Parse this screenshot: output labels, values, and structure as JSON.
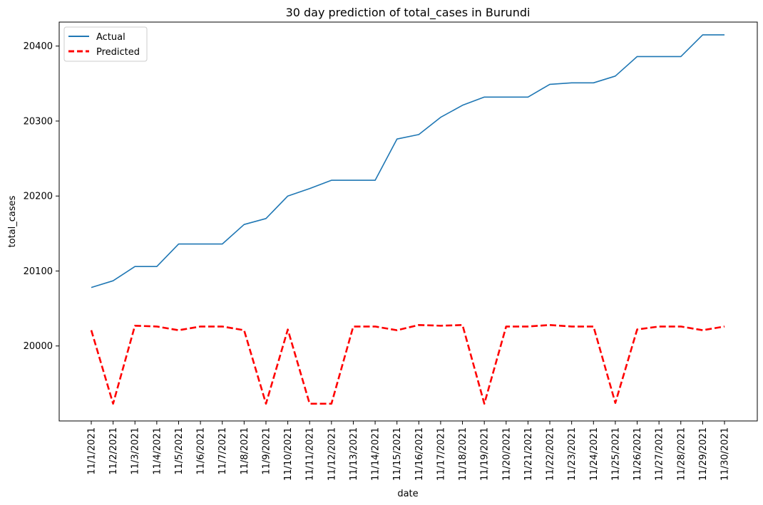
{
  "chart_data": {
    "type": "line",
    "title": "30 day prediction of total_cases in Burundi",
    "xlabel": "date",
    "ylabel": "total_cases",
    "categories": [
      "11/1/2021",
      "11/2/2021",
      "11/3/2021",
      "11/4/2021",
      "11/5/2021",
      "11/6/2021",
      "11/7/2021",
      "11/8/2021",
      "11/9/2021",
      "11/10/2021",
      "11/11/2021",
      "11/12/2021",
      "11/13/2021",
      "11/14/2021",
      "11/15/2021",
      "11/16/2021",
      "11/17/2021",
      "11/18/2021",
      "11/19/2021",
      "11/20/2021",
      "11/21/2021",
      "11/22/2021",
      "11/23/2021",
      "11/24/2021",
      "11/25/2021",
      "11/26/2021",
      "11/27/2021",
      "11/28/2021",
      "11/29/2021",
      "11/30/2021"
    ],
    "series": [
      {
        "name": "Actual",
        "color": "#1f77b4",
        "style": "solid",
        "values": [
          20078,
          20087,
          20106,
          20106,
          20136,
          20136,
          20136,
          20162,
          20170,
          20200,
          20210,
          20221,
          20221,
          20221,
          20276,
          20282,
          20305,
          20321,
          20332,
          20332,
          20332,
          20349,
          20351,
          20351,
          20360,
          20386,
          20386,
          20386,
          20415,
          20415
        ]
      },
      {
        "name": "Predicted",
        "color": "#ff0000",
        "style": "dashed",
        "values": [
          20021,
          19923,
          20027,
          20026,
          20021,
          20026,
          20026,
          20021,
          19923,
          20022,
          19923,
          19923,
          20026,
          20026,
          20021,
          20028,
          20027,
          20028,
          19923,
          20026,
          20026,
          20028,
          20026,
          20026,
          19924,
          20022,
          20026,
          20026,
          20021,
          20026
        ]
      }
    ],
    "yticks": [
      20000,
      20100,
      20200,
      20300,
      20400
    ],
    "ylim": [
      19900,
      20432
    ],
    "grid": false,
    "legend_position": "top-left"
  }
}
